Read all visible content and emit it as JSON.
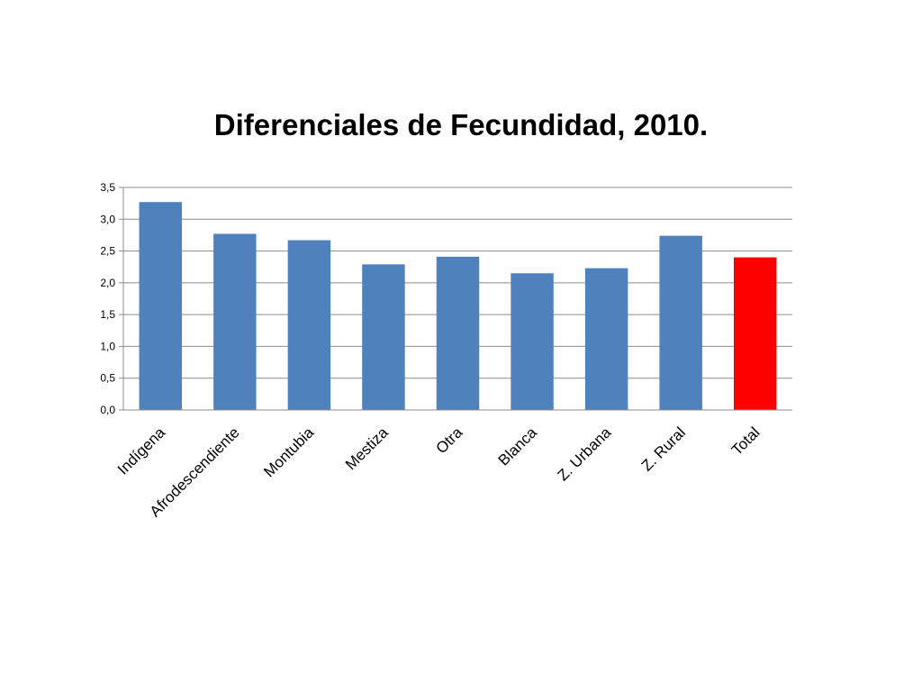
{
  "chart_data": {
    "type": "bar",
    "title": "Diferenciales de Fecundidad, 2010.",
    "categories": [
      "Indígena",
      "Afrodescendiente",
      "Montubia",
      "Mestiza",
      "Otra",
      "Blanca",
      "Z. Urbana",
      "Z. Rural",
      "Total"
    ],
    "values": [
      3.27,
      2.77,
      2.67,
      2.29,
      2.41,
      2.15,
      2.23,
      2.74,
      2.4
    ],
    "bar_colors": [
      "#4f81bd",
      "#4f81bd",
      "#4f81bd",
      "#4f81bd",
      "#4f81bd",
      "#4f81bd",
      "#4f81bd",
      "#4f81bd",
      "#ff0000"
    ],
    "ylim": [
      0,
      3.5
    ],
    "yticks": [
      "0,0",
      "0,5",
      "1,0",
      "1,5",
      "2,0",
      "2,5",
      "3,0",
      "3,5"
    ],
    "grid": true,
    "legend": "none"
  }
}
